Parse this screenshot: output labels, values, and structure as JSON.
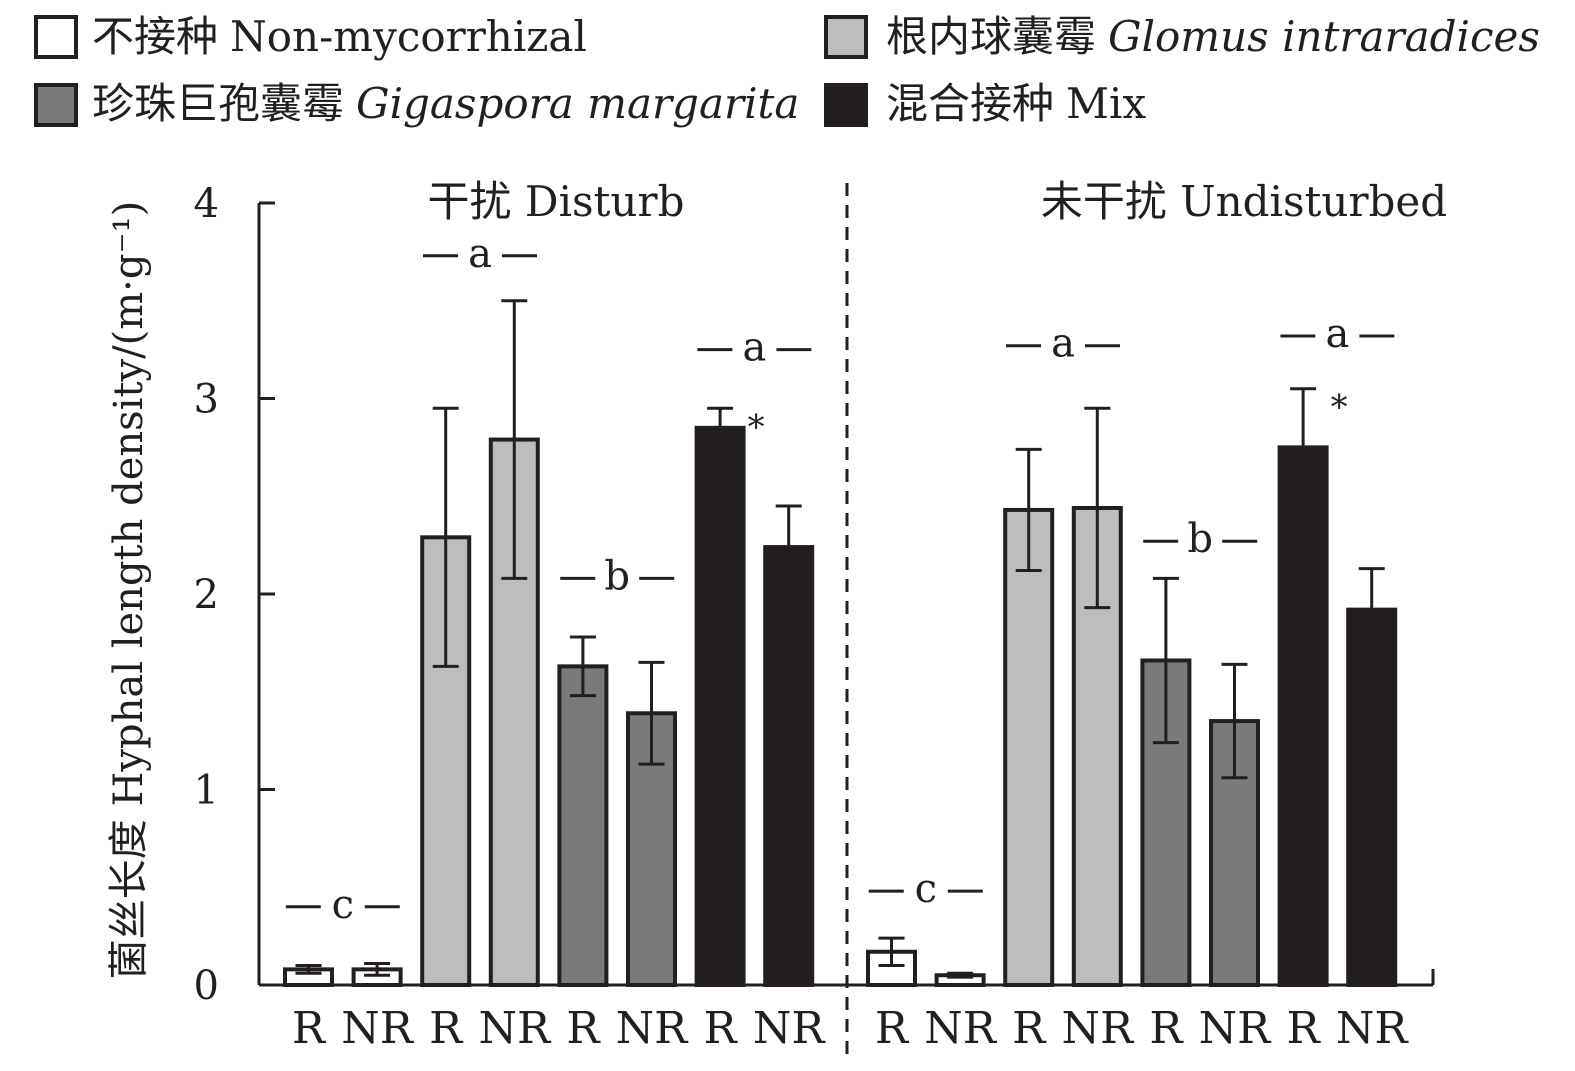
{
  "chart_data": {
    "type": "bar",
    "ylabel": "菌丝长度 Hyphal length density/(m·g⁻¹)",
    "ylim": [
      0,
      4
    ],
    "yticks": [
      0,
      1,
      2,
      3,
      4
    ],
    "grid": false,
    "legend_position": "top",
    "legend": [
      {
        "cn": "不接种",
        "en": "Non-mycorrhizal",
        "italic": false,
        "color": "#ffffff"
      },
      {
        "cn": "根内球囊霉",
        "en": "Glomus intraradices",
        "italic": true,
        "color": "#bdbdbd"
      },
      {
        "cn": "珍珠巨孢囊霉",
        "en": "Gigaspora margarita",
        "italic": true,
        "color": "#7a7a7a"
      },
      {
        "cn": "混合接种",
        "en": "Mix",
        "italic": false,
        "color": "#231f20"
      }
    ],
    "panels": [
      {
        "title": "干扰 Disturb",
        "bars": [
          {
            "series": 0,
            "cat": "R",
            "value": 0.08,
            "err": 0.02
          },
          {
            "series": 0,
            "cat": "NR",
            "value": 0.08,
            "err": 0.03
          },
          {
            "series": 1,
            "cat": "R",
            "value": 2.29,
            "err": 0.66
          },
          {
            "series": 1,
            "cat": "NR",
            "value": 2.79,
            "err": 0.71
          },
          {
            "series": 2,
            "cat": "R",
            "value": 1.63,
            "err": 0.15
          },
          {
            "series": 2,
            "cat": "NR",
            "value": 1.39,
            "err": 0.26
          },
          {
            "series": 3,
            "cat": "R",
            "value": 2.85,
            "err": 0.1
          },
          {
            "series": 3,
            "cat": "NR",
            "value": 2.24,
            "err": 0.21
          }
        ],
        "letters": [
          {
            "series": 0,
            "text": "c",
            "y": 0.4
          },
          {
            "series": 1,
            "text": "a",
            "y": 3.73
          },
          {
            "series": 2,
            "text": "b",
            "y": 2.08
          },
          {
            "series": 3,
            "text": "a",
            "y": 3.25
          }
        ],
        "stars": [
          {
            "series": 3,
            "text": "*"
          }
        ]
      },
      {
        "title": "未干扰 Undisturbed",
        "bars": [
          {
            "series": 0,
            "cat": "R",
            "value": 0.17,
            "err": 0.07
          },
          {
            "series": 0,
            "cat": "NR",
            "value": 0.05,
            "err": 0.01
          },
          {
            "series": 1,
            "cat": "R",
            "value": 2.43,
            "err": 0.31
          },
          {
            "series": 1,
            "cat": "NR",
            "value": 2.44,
            "err": 0.51
          },
          {
            "series": 2,
            "cat": "R",
            "value": 1.66,
            "err": 0.42
          },
          {
            "series": 2,
            "cat": "NR",
            "value": 1.35,
            "err": 0.29
          },
          {
            "series": 3,
            "cat": "R",
            "value": 2.75,
            "err": 0.3
          },
          {
            "series": 3,
            "cat": "NR",
            "value": 1.92,
            "err": 0.21
          }
        ],
        "letters": [
          {
            "series": 0,
            "text": "c",
            "y": 0.48
          },
          {
            "series": 1,
            "text": "a",
            "y": 3.27
          },
          {
            "series": 2,
            "text": "b",
            "y": 2.27
          },
          {
            "series": 3,
            "text": "a",
            "y": 3.32
          }
        ],
        "stars": [
          {
            "series": 3,
            "text": "*"
          }
        ]
      }
    ]
  }
}
